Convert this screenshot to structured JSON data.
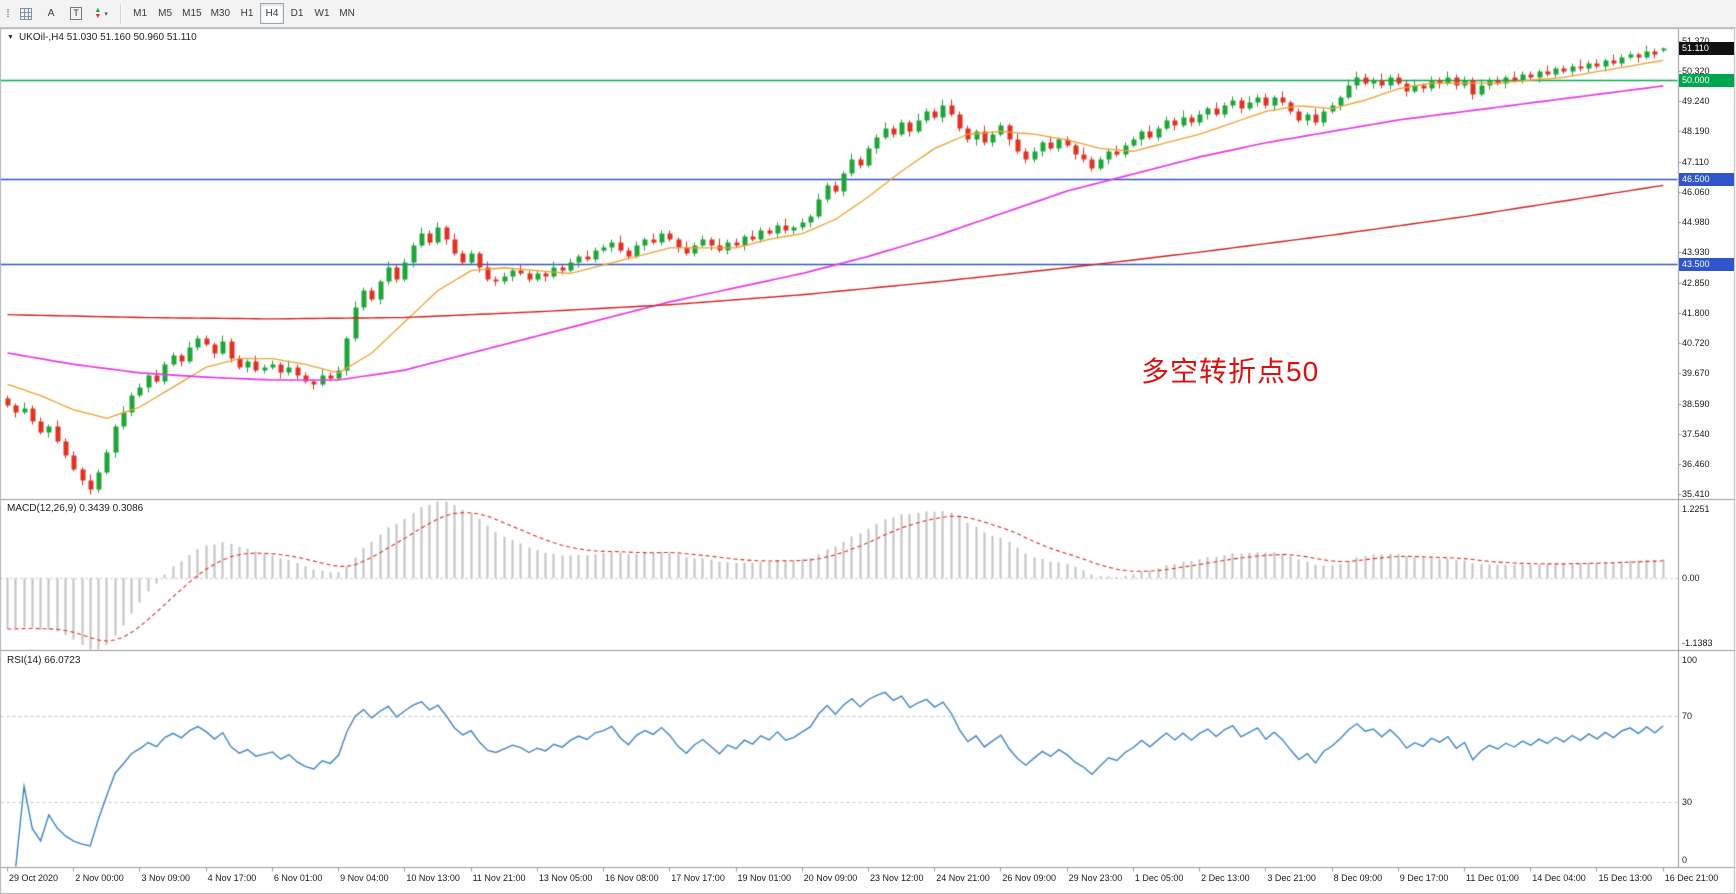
{
  "toolbar": {
    "text_tool": "A",
    "label_tool": "T",
    "timeframes": [
      "M1",
      "M5",
      "M15",
      "M30",
      "H1",
      "H4",
      "D1",
      "W1",
      "MN"
    ],
    "active_timeframe": "H4"
  },
  "icons": {
    "toolbar_handle": "⁞⁞",
    "dropdown_caret": "▾",
    "indicator_up": "▲",
    "indicator_down": "▼",
    "title_collapse": "▼"
  },
  "chart": {
    "symbol": "UKOil-",
    "period": "H4",
    "title": "UKOil-,H4 51.030 51.160 50.960 51.110",
    "annotation": {
      "text": "多空转折点50"
    }
  },
  "indicators": {
    "macd": {
      "label": "MACD(12,26,9) 0.3439 0.3086"
    },
    "rsi": {
      "label": "RSI(14) 66.0723"
    }
  },
  "colors": {
    "up": "#1ea538",
    "down": "#e03123",
    "macd_hist": "#c2c2c2",
    "macd_signal": "#e03123",
    "rsi_line": "#3d85c8",
    "annotation": "#dd1111"
  },
  "chart_data": {
    "type": "candlestick",
    "symbol": "UKOil-",
    "timeframe": "H4",
    "price_range": {
      "min": 35.28,
      "max": 51.75
    },
    "price_axis_labels": [
      "51.370",
      "50.320",
      "49.240",
      "48.190",
      "47.110",
      "46.060",
      "44.980",
      "43.930",
      "42.850",
      "41.800",
      "40.720",
      "39.670",
      "38.590",
      "37.540",
      "36.460",
      "35.410"
    ],
    "axis_badges": [
      {
        "label": "51.110",
        "price": 51.11,
        "bg": "#111111",
        "draggable": false
      },
      {
        "label": "50.000",
        "price": 50.0,
        "bg": "#00a550",
        "draggable": true
      },
      {
        "label": "46.500",
        "price": 46.5,
        "bg": "#3055cc",
        "draggable": true
      },
      {
        "label": "43.500",
        "price": 43.5,
        "bg": "#3055cc",
        "draggable": true
      }
    ],
    "time_labels": [
      "29 Oct 2020",
      "2 Nov 00:00",
      "3 Nov 09:00",
      "4 Nov 17:00",
      "6 Nov 01:00",
      "9 Nov 04:00",
      "10 Nov 13:00",
      "11 Nov 21:00",
      "13 Nov 05:00",
      "16 Nov 08:00",
      "17 Nov 17:00",
      "19 Nov 01:00",
      "20 Nov 09:00",
      "23 Nov 12:00",
      "24 Nov 21:00",
      "26 Nov 09:00",
      "29 Nov 23:00",
      "1 Dec 05:00",
      "2 Dec 13:00",
      "3 Dec 21:00",
      "8 Dec 09:00",
      "9 Dec 17:00",
      "11 Dec 01:00",
      "14 Dec 04:00",
      "15 Dec 13:00",
      "16 Dec 21:00"
    ],
    "label_every_n_candles": 8,
    "first_open": 38.8,
    "closes": [
      38.55,
      38.3,
      38.45,
      38.0,
      37.6,
      37.8,
      37.3,
      36.8,
      36.3,
      35.9,
      35.6,
      36.2,
      36.9,
      37.8,
      38.3,
      38.9,
      39.2,
      39.6,
      39.4,
      40.0,
      40.3,
      40.1,
      40.6,
      40.9,
      40.7,
      40.4,
      40.8,
      40.2,
      39.9,
      40.1,
      39.8,
      39.9,
      40.0,
      39.7,
      39.9,
      39.6,
      39.4,
      39.3,
      39.6,
      39.5,
      39.8,
      40.9,
      42.0,
      42.6,
      42.3,
      42.9,
      43.4,
      43.0,
      43.6,
      44.2,
      44.6,
      44.3,
      44.8,
      44.4,
      43.9,
      43.6,
      43.9,
      43.4,
      43.0,
      42.9,
      43.1,
      43.3,
      43.2,
      43.0,
      43.2,
      43.1,
      43.4,
      43.3,
      43.6,
      43.8,
      43.7,
      44.0,
      44.1,
      44.3,
      44.0,
      43.8,
      44.2,
      44.4,
      44.3,
      44.6,
      44.4,
      44.1,
      43.9,
      44.2,
      44.4,
      44.2,
      44.0,
      44.3,
      44.2,
      44.5,
      44.4,
      44.7,
      44.6,
      44.9,
      44.7,
      44.8,
      45.0,
      45.2,
      45.8,
      46.3,
      46.1,
      46.7,
      47.2,
      47.0,
      47.6,
      48.0,
      48.3,
      48.1,
      48.5,
      48.2,
      48.6,
      48.9,
      48.7,
      49.1,
      48.8,
      48.3,
      47.9,
      48.2,
      47.8,
      48.1,
      48.4,
      47.9,
      47.5,
      47.2,
      47.5,
      47.8,
      47.6,
      47.9,
      47.7,
      47.4,
      47.2,
      46.9,
      47.2,
      47.5,
      47.4,
      47.7,
      47.9,
      48.2,
      48.0,
      48.3,
      48.6,
      48.4,
      48.7,
      48.5,
      48.8,
      49.0,
      48.8,
      49.1,
      49.3,
      49.0,
      49.2,
      49.4,
      49.1,
      49.4,
      49.2,
      48.9,
      48.6,
      48.8,
      48.5,
      48.9,
      49.1,
      49.4,
      49.8,
      50.1,
      49.9,
      50.0,
      49.8,
      50.1,
      49.9,
      49.6,
      49.8,
      49.7,
      50.0,
      49.9,
      50.1,
      49.8,
      50.0,
      49.5,
      49.8,
      50.0,
      49.9,
      50.1,
      50.0,
      50.2,
      50.1,
      50.3,
      50.2,
      50.4,
      50.3,
      50.5,
      50.4,
      50.6,
      50.5,
      50.7,
      50.6,
      50.8,
      50.9,
      50.8,
      51.0,
      50.9,
      51.11
    ],
    "wick_pattern": [
      [
        0.12,
        0.08
      ],
      [
        0.08,
        0.18
      ],
      [
        0.22,
        0.08
      ],
      [
        0.1,
        0.12
      ]
    ],
    "candle_overrides": {
      "10": {
        "low": 35.41
      },
      "52": {
        "high": 44.98
      },
      "113": {
        "high": 49.32
      },
      "163": {
        "high": 50.32
      },
      "200": {
        "open": 51.03,
        "high": 51.16,
        "low": 50.96,
        "close": 51.11
      }
    },
    "moving_averages": [
      {
        "name": "ma-fast",
        "color": "#f0a030",
        "width": 1.3,
        "points": [
          [
            0,
            39.3
          ],
          [
            4,
            38.9
          ],
          [
            8,
            38.4
          ],
          [
            12,
            38.1
          ],
          [
            16,
            38.5
          ],
          [
            20,
            39.2
          ],
          [
            24,
            39.9
          ],
          [
            28,
            40.2
          ],
          [
            32,
            40.2
          ],
          [
            36,
            40.0
          ],
          [
            40,
            39.7
          ],
          [
            44,
            40.4
          ],
          [
            48,
            41.5
          ],
          [
            52,
            42.6
          ],
          [
            56,
            43.3
          ],
          [
            60,
            43.4
          ],
          [
            64,
            43.3
          ],
          [
            68,
            43.2
          ],
          [
            72,
            43.5
          ],
          [
            76,
            43.8
          ],
          [
            80,
            44.1
          ],
          [
            84,
            44.1
          ],
          [
            88,
            44.1
          ],
          [
            92,
            44.4
          ],
          [
            96,
            44.6
          ],
          [
            100,
            45.1
          ],
          [
            104,
            45.9
          ],
          [
            108,
            46.8
          ],
          [
            112,
            47.6
          ],
          [
            116,
            48.1
          ],
          [
            120,
            48.2
          ],
          [
            124,
            48.1
          ],
          [
            128,
            47.9
          ],
          [
            132,
            47.6
          ],
          [
            136,
            47.5
          ],
          [
            140,
            47.8
          ],
          [
            144,
            48.1
          ],
          [
            148,
            48.5
          ],
          [
            152,
            48.9
          ],
          [
            156,
            49.1
          ],
          [
            160,
            49.0
          ],
          [
            164,
            49.3
          ],
          [
            168,
            49.7
          ],
          [
            172,
            49.9
          ],
          [
            176,
            49.9
          ],
          [
            180,
            49.9
          ],
          [
            184,
            50.0
          ],
          [
            188,
            50.1
          ],
          [
            192,
            50.3
          ],
          [
            196,
            50.5
          ],
          [
            200,
            50.7
          ]
        ]
      },
      {
        "name": "ma-mid",
        "color": "#e838e8",
        "width": 1.7,
        "points": [
          [
            0,
            40.4
          ],
          [
            8,
            40.0
          ],
          [
            16,
            39.7
          ],
          [
            24,
            39.55
          ],
          [
            32,
            39.45
          ],
          [
            40,
            39.45
          ],
          [
            48,
            39.8
          ],
          [
            56,
            40.4
          ],
          [
            64,
            41.0
          ],
          [
            72,
            41.6
          ],
          [
            80,
            42.2
          ],
          [
            88,
            42.7
          ],
          [
            96,
            43.2
          ],
          [
            104,
            43.8
          ],
          [
            112,
            44.5
          ],
          [
            120,
            45.3
          ],
          [
            128,
            46.1
          ],
          [
            136,
            46.7
          ],
          [
            144,
            47.3
          ],
          [
            152,
            47.8
          ],
          [
            160,
            48.2
          ],
          [
            168,
            48.6
          ],
          [
            176,
            48.9
          ],
          [
            184,
            49.2
          ],
          [
            192,
            49.5
          ],
          [
            200,
            49.8
          ]
        ]
      },
      {
        "name": "ma-slow",
        "color": "#cc2020",
        "width": 1.4,
        "points": [
          [
            0,
            41.75
          ],
          [
            16,
            41.65
          ],
          [
            32,
            41.6
          ],
          [
            48,
            41.65
          ],
          [
            64,
            41.85
          ],
          [
            80,
            42.1
          ],
          [
            96,
            42.45
          ],
          [
            112,
            42.9
          ],
          [
            128,
            43.4
          ],
          [
            144,
            43.95
          ],
          [
            160,
            44.55
          ],
          [
            176,
            45.2
          ],
          [
            188,
            45.75
          ],
          [
            200,
            46.3
          ]
        ]
      }
    ],
    "horizontal_lines": [
      {
        "price": 50.0,
        "label": "50.000",
        "color": "#00b050",
        "width": 1.3
      },
      {
        "price": 46.5,
        "label": "46.500",
        "color": "#3055cc",
        "width": 1.6
      },
      {
        "price": 43.5,
        "label": "43.500",
        "color": "#3055cc",
        "width": 1.6
      }
    ],
    "current_price": {
      "value": 51.11,
      "label": "51.110"
    },
    "macd": {
      "fast": 12,
      "slow": 26,
      "signal": 9,
      "value_main": 0.3439,
      "value_signal": 0.3086,
      "axis_max": 1.2251,
      "axis_min": -1.1383,
      "axis_labels": [
        "1.2251",
        "0.00",
        "-1.1383"
      ],
      "seed_fast": 39.05,
      "seed_slow": 39.85
    },
    "rsi": {
      "period": 14,
      "value": 66.0723,
      "levels": [
        70,
        30
      ],
      "axis_labels": [
        "100",
        "70",
        "30",
        "0"
      ]
    }
  }
}
